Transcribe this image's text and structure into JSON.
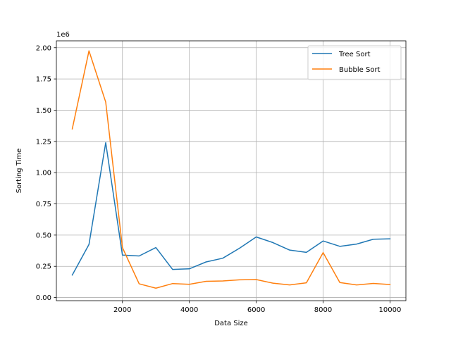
{
  "chart_data": {
    "type": "line",
    "title": "",
    "xlabel": "Data Size",
    "ylabel": "Sorting Time",
    "y_offset_label": "1e6",
    "x": [
      500,
      1000,
      1500,
      2000,
      2500,
      3000,
      3500,
      4000,
      4500,
      5000,
      5500,
      6000,
      6500,
      7000,
      7500,
      8000,
      8500,
      9000,
      9500,
      10000
    ],
    "series": [
      {
        "name": "Tree Sort",
        "color": "#1f77b4",
        "values": [
          180000,
          425000,
          1240000,
          340000,
          333000,
          400000,
          225000,
          230000,
          285000,
          315000,
          395000,
          485000,
          440000,
          380000,
          362000,
          453000,
          410000,
          428000,
          467000,
          470000
        ]
      },
      {
        "name": "Bubble Sort",
        "color": "#ff7f0e",
        "values": [
          1350000,
          1975000,
          1565000,
          400000,
          110000,
          75000,
          112000,
          106000,
          130000,
          133000,
          142000,
          144000,
          115000,
          101000,
          118000,
          360000,
          120000,
          101000,
          113000,
          104000
        ]
      }
    ],
    "xlim": [
      25,
      10475
    ],
    "ylim": [
      -25000,
      2055000
    ],
    "x_ticks": [
      2000,
      4000,
      6000,
      8000,
      10000
    ],
    "x_tick_labels": [
      "2000",
      "4000",
      "6000",
      "8000",
      "10000"
    ],
    "y_ticks": [
      0,
      250000,
      500000,
      750000,
      1000000,
      1250000,
      1500000,
      1750000,
      2000000
    ],
    "y_tick_labels": [
      "0.00",
      "0.25",
      "0.50",
      "0.75",
      "1.00",
      "1.25",
      "1.50",
      "1.75",
      "2.00"
    ],
    "grid": true,
    "legend_position": "upper right"
  }
}
